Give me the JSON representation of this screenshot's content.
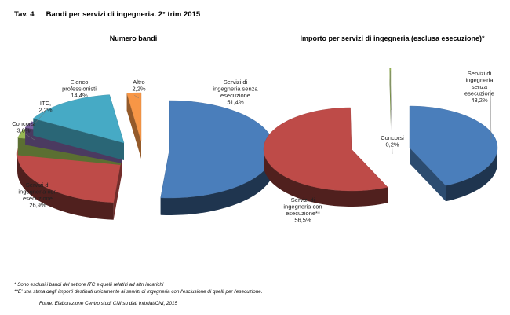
{
  "header": {
    "tav": "Tav. 4",
    "title": "Bandi per servizi di ingegneria. 2° trim 2015"
  },
  "chart_data": [
    {
      "type": "pie",
      "title": "Numero bandi",
      "slices": [
        {
          "label": "Servizi di ingegneria senza esecuzione",
          "label_lines": [
            "Servizi di",
            "ingegneria senza",
            "esecuzione"
          ],
          "value": 51.4,
          "value_text": "51,4%",
          "color": "#4a7ebb"
        },
        {
          "label": "Servizi di ingegneria con esecuzione",
          "label_lines": [
            "Servizi di",
            "ingegneria con",
            "esecuzione"
          ],
          "value": 26.9,
          "value_text": "26,9%",
          "color": "#be4b48"
        },
        {
          "label": "Concorsi",
          "label_lines": [
            "Concorsi"
          ],
          "value": 3.0,
          "value_text": "3,0%",
          "color": "#98b954"
        },
        {
          "label": "ITC",
          "label_lines": [
            "ITC"
          ],
          "value": 2.2,
          "value_text": "2,2%",
          "color": "#7d60a0"
        },
        {
          "label": "Elenco professionisti",
          "label_lines": [
            "Elenco",
            "professionisti"
          ],
          "value": 14.4,
          "value_text": "14,4%",
          "color": "#46aac5"
        },
        {
          "label": "Altro",
          "label_lines": [
            "Altro"
          ],
          "value": 2.2,
          "value_text": "2,2%",
          "color": "#f79646"
        }
      ]
    },
    {
      "type": "pie",
      "title": "Importo per servizi di ingegneria (esclusa esecuzione)*",
      "slices": [
        {
          "label": "Servizi di ingegneria senza esecuzione",
          "label_lines": [
            "Servizi di",
            "ingegneria",
            "senza",
            "esecuzione"
          ],
          "value": 43.2,
          "value_text": "43,2%",
          "color": "#4a7ebb"
        },
        {
          "label": "Servizi di ingegneria con esecuzione**",
          "label_lines": [
            "Servizi di",
            "ingegneria con",
            "esecuzione**"
          ],
          "value": 56.5,
          "value_text": "56,5%",
          "color": "#be4b48"
        },
        {
          "label": "Concorsi",
          "label_lines": [
            "Concorsi"
          ],
          "value": 0.2,
          "value_text": "0,2%",
          "color": "#98b954"
        }
      ]
    }
  ],
  "notes": [
    "* Sono esclusi i bandi del settore ITC e quelli relativi ad altri incarichi",
    "**E' una stima degli importi destinati unicamente ai servizi di ingegneria con l'esclusione di quelli per l'esecuzione."
  ],
  "source": "Fonte: Elaborazione Centro studi CNI su dati Infodat/CNI, 2015"
}
